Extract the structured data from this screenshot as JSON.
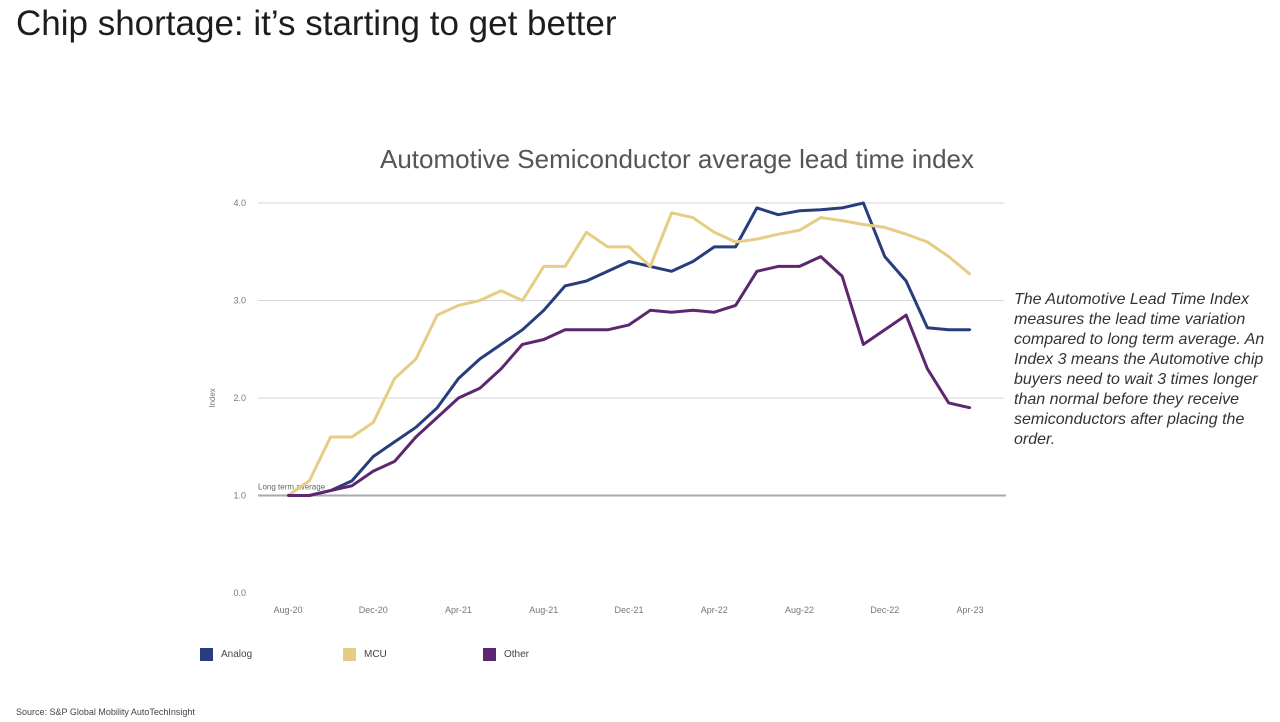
{
  "page": {
    "title": "Chip shortage: it’s starting to get better",
    "note": "The Automotive Lead Time Index measures the lead time variation compared to long term average. An Index 3 means the Automotive chip buyers need to wait 3 times longer than normal before they receive semiconductors after placing the order.",
    "source": "Source: S&P Global Mobility AutoTechInsight"
  },
  "chart_data": {
    "type": "line",
    "title": "Automotive Semiconductor average lead time index",
    "ylabel": "Index",
    "xlabel": "",
    "ylim": [
      0,
      4
    ],
    "yticks": [
      0,
      1,
      2,
      3,
      4
    ],
    "ytick_labels": [
      "0.0",
      "1.0",
      "2.0",
      "3.0",
      "4.0"
    ],
    "x_tick_labels": [
      "Aug-20",
      "Dec-20",
      "Apr-21",
      "Aug-21",
      "Dec-21",
      "Apr-22",
      "Aug-22",
      "Dec-22",
      "Apr-23"
    ],
    "grid": true,
    "legend_position": "bottom-left",
    "reference_line": {
      "value": 1.0,
      "label": "Long term average"
    },
    "x": [
      "Aug-20",
      "Sep-20",
      "Oct-20",
      "Nov-20",
      "Dec-20",
      "Jan-21",
      "Feb-21",
      "Mar-21",
      "Apr-21",
      "May-21",
      "Jun-21",
      "Jul-21",
      "Aug-21",
      "Sep-21",
      "Oct-21",
      "Nov-21",
      "Dec-21",
      "Jan-22",
      "Feb-22",
      "Mar-22",
      "Apr-22",
      "May-22",
      "Jun-22",
      "Jul-22",
      "Aug-22",
      "Sep-22",
      "Oct-22",
      "Nov-22",
      "Dec-22",
      "Jan-23",
      "Feb-23",
      "Mar-23",
      "Apr-23"
    ],
    "series": [
      {
        "name": "Analog",
        "color": "#283d7c",
        "values": [
          1.0,
          1.0,
          1.05,
          1.15,
          1.4,
          1.55,
          1.7,
          1.9,
          2.2,
          2.4,
          2.55,
          2.7,
          2.9,
          3.15,
          3.2,
          3.3,
          3.4,
          3.35,
          3.3,
          3.4,
          3.55,
          3.55,
          3.95,
          3.88,
          3.92,
          3.93,
          3.95,
          4.0,
          3.45,
          3.2,
          2.72,
          2.7,
          2.7
        ]
      },
      {
        "name": "MCU",
        "color": "#e6cd84",
        "values": [
          1.0,
          1.15,
          1.6,
          1.6,
          1.75,
          2.2,
          2.4,
          2.85,
          2.95,
          3.0,
          3.1,
          3.0,
          3.35,
          3.35,
          3.7,
          3.55,
          3.55,
          3.35,
          3.9,
          3.85,
          3.7,
          3.6,
          3.63,
          3.68,
          3.72,
          3.85,
          3.82,
          3.78,
          3.75,
          3.68,
          3.6,
          3.45,
          3.27
        ]
      },
      {
        "name": "Other",
        "color": "#5c2770",
        "values": [
          1.0,
          1.0,
          1.05,
          1.1,
          1.25,
          1.35,
          1.6,
          1.8,
          2.0,
          2.1,
          2.3,
          2.55,
          2.6,
          2.7,
          2.7,
          2.7,
          2.75,
          2.9,
          2.88,
          2.9,
          2.88,
          2.95,
          3.3,
          3.35,
          3.35,
          3.45,
          3.25,
          2.55,
          2.7,
          2.85,
          2.3,
          1.95,
          1.9
        ]
      }
    ]
  }
}
